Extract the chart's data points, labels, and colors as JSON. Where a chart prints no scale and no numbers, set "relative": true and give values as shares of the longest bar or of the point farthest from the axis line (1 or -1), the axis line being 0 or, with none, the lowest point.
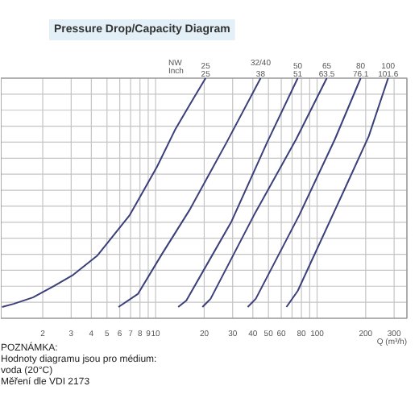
{
  "chart_data": {
    "type": "line",
    "title": "Pressure Drop/Capacity Diagram",
    "xlabel": "Q (m³/h)",
    "relative": true,
    "log": "x",
    "grid": true,
    "legend": false,
    "marker": "none",
    "line_style": "solid",
    "xlim": [
      1.1,
      360
    ],
    "xticks": [
      2,
      3,
      4,
      5,
      6,
      7,
      8,
      9,
      10,
      20,
      30,
      40,
      50,
      60,
      {
        "value": 70,
        "label": null
      },
      80,
      {
        "value": 90,
        "label": null
      },
      100,
      200,
      300
    ],
    "series": [
      {
        "name": "25",
        "color": "#3b3f7a",
        "x": [
          1.12,
          1.32,
          1.74,
          2.34,
          3.09,
          4.37,
          6.92,
          10.2,
          13.2,
          16.6,
          20.4
        ],
        "values": [
          0.047,
          0.06,
          0.087,
          0.134,
          0.181,
          0.262,
          0.43,
          0.631,
          0.785,
          0.899,
          1.0
        ]
      },
      {
        "name": "32/40",
        "color": "#3b3f7a",
        "x": [
          5.89,
          7.76,
          10.96,
          16.2,
          27.5,
          44.7
        ],
        "values": [
          0.047,
          0.101,
          0.268,
          0.45,
          0.732,
          1.0
        ]
      },
      {
        "name": "50",
        "color": "#3b3f7a",
        "x": [
          13.8,
          15.5,
          29.5,
          49.0,
          75.9
        ],
        "values": [
          0.047,
          0.074,
          0.403,
          0.732,
          1.0
        ]
      },
      {
        "name": "65",
        "color": "#3b3f7a",
        "x": [
          19.5,
          21.9,
          40.7,
          74.1,
          114.8
        ],
        "values": [
          0.047,
          0.081,
          0.43,
          0.745,
          1.0
        ]
      },
      {
        "name": "80",
        "color": "#3b3f7a",
        "x": [
          37.2,
          41.7,
          77.6,
          128.8,
          186.2
        ],
        "values": [
          0.047,
          0.081,
          0.43,
          0.745,
          1.0
        ]
      },
      {
        "name": "100",
        "color": "#3b3f7a",
        "x": [
          64.6,
          75.9,
          147.9,
          208.9,
          275.4
        ],
        "values": [
          0.047,
          0.114,
          0.537,
          0.758,
          1.0
        ]
      }
    ],
    "annotations": [
      "NW",
      "Inch",
      {
        "text": "25",
        "x": 20.4,
        "y": 1.0
      },
      {
        "text": "38",
        "x": 44.7,
        "y": 1.0
      },
      {
        "text": "51",
        "x": 75.9,
        "y": 1.0
      },
      {
        "text": "63.5",
        "x": 114.8,
        "y": 1.0
      },
      {
        "text": "76.1",
        "x": 186.2,
        "y": 1.0
      },
      {
        "text": "101.6",
        "x": 275.4,
        "y": 1.0
      },
      "POZNÁMKA:",
      "Hodnoty diagramu jsou pro médium:",
      "voda (20°C)",
      "Měření dle VDI 2173"
    ]
  }
}
